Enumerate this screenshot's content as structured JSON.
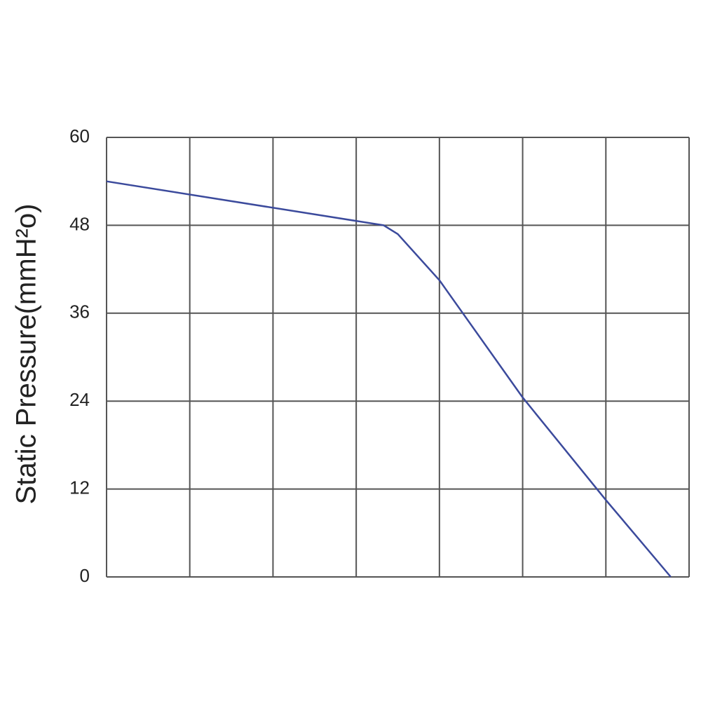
{
  "chart_data": {
    "type": "line",
    "y_label": "Static Pressure(mmH²o)",
    "x": [
      0,
      3.33,
      3.5,
      4,
      5,
      6,
      6.78
    ],
    "series": [
      {
        "name": "Static Pressure",
        "color": "#3b4a9c",
        "values": [
          54,
          48,
          46.8,
          40.5,
          24.5,
          10.5,
          0
        ]
      }
    ],
    "xlim": [
      0,
      7
    ],
    "xticks": [
      0,
      1,
      2,
      3,
      4,
      5,
      6,
      7
    ],
    "ylim": [
      0,
      60
    ],
    "yticks": [
      0,
      12,
      24,
      36,
      48,
      60
    ],
    "grid": true
  }
}
